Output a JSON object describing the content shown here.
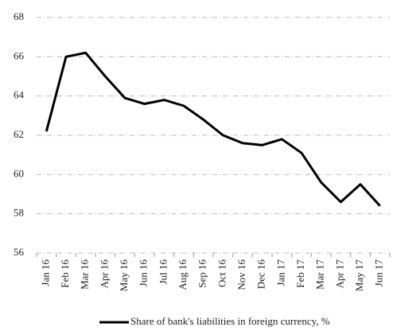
{
  "chart_data": {
    "type": "line",
    "categories": [
      "Jan 16",
      "Feb 16",
      "Mar 16",
      "Apr 16",
      "May 16",
      "Jun 16",
      "Jul 16",
      "Aug 16",
      "Sep 16",
      "Oct 16",
      "Nov 16",
      "Dec 16",
      "Jan 17",
      "Feb 17",
      "Mar 17",
      "Apr 17",
      "May 17",
      "Jun 17"
    ],
    "series": [
      {
        "name": "Share of bank's liabilities in foreign currency, %",
        "color": "#000000",
        "values": [
          62.2,
          66.0,
          66.2,
          65.0,
          63.9,
          63.6,
          63.8,
          63.5,
          62.8,
          62.0,
          61.6,
          61.5,
          61.8,
          61.1,
          59.6,
          58.6,
          59.5,
          58.4
        ]
      }
    ],
    "ylim": [
      56,
      68
    ],
    "yticks": [
      56,
      58,
      60,
      62,
      64,
      66,
      68
    ],
    "grid": true,
    "legend": "bottom"
  }
}
